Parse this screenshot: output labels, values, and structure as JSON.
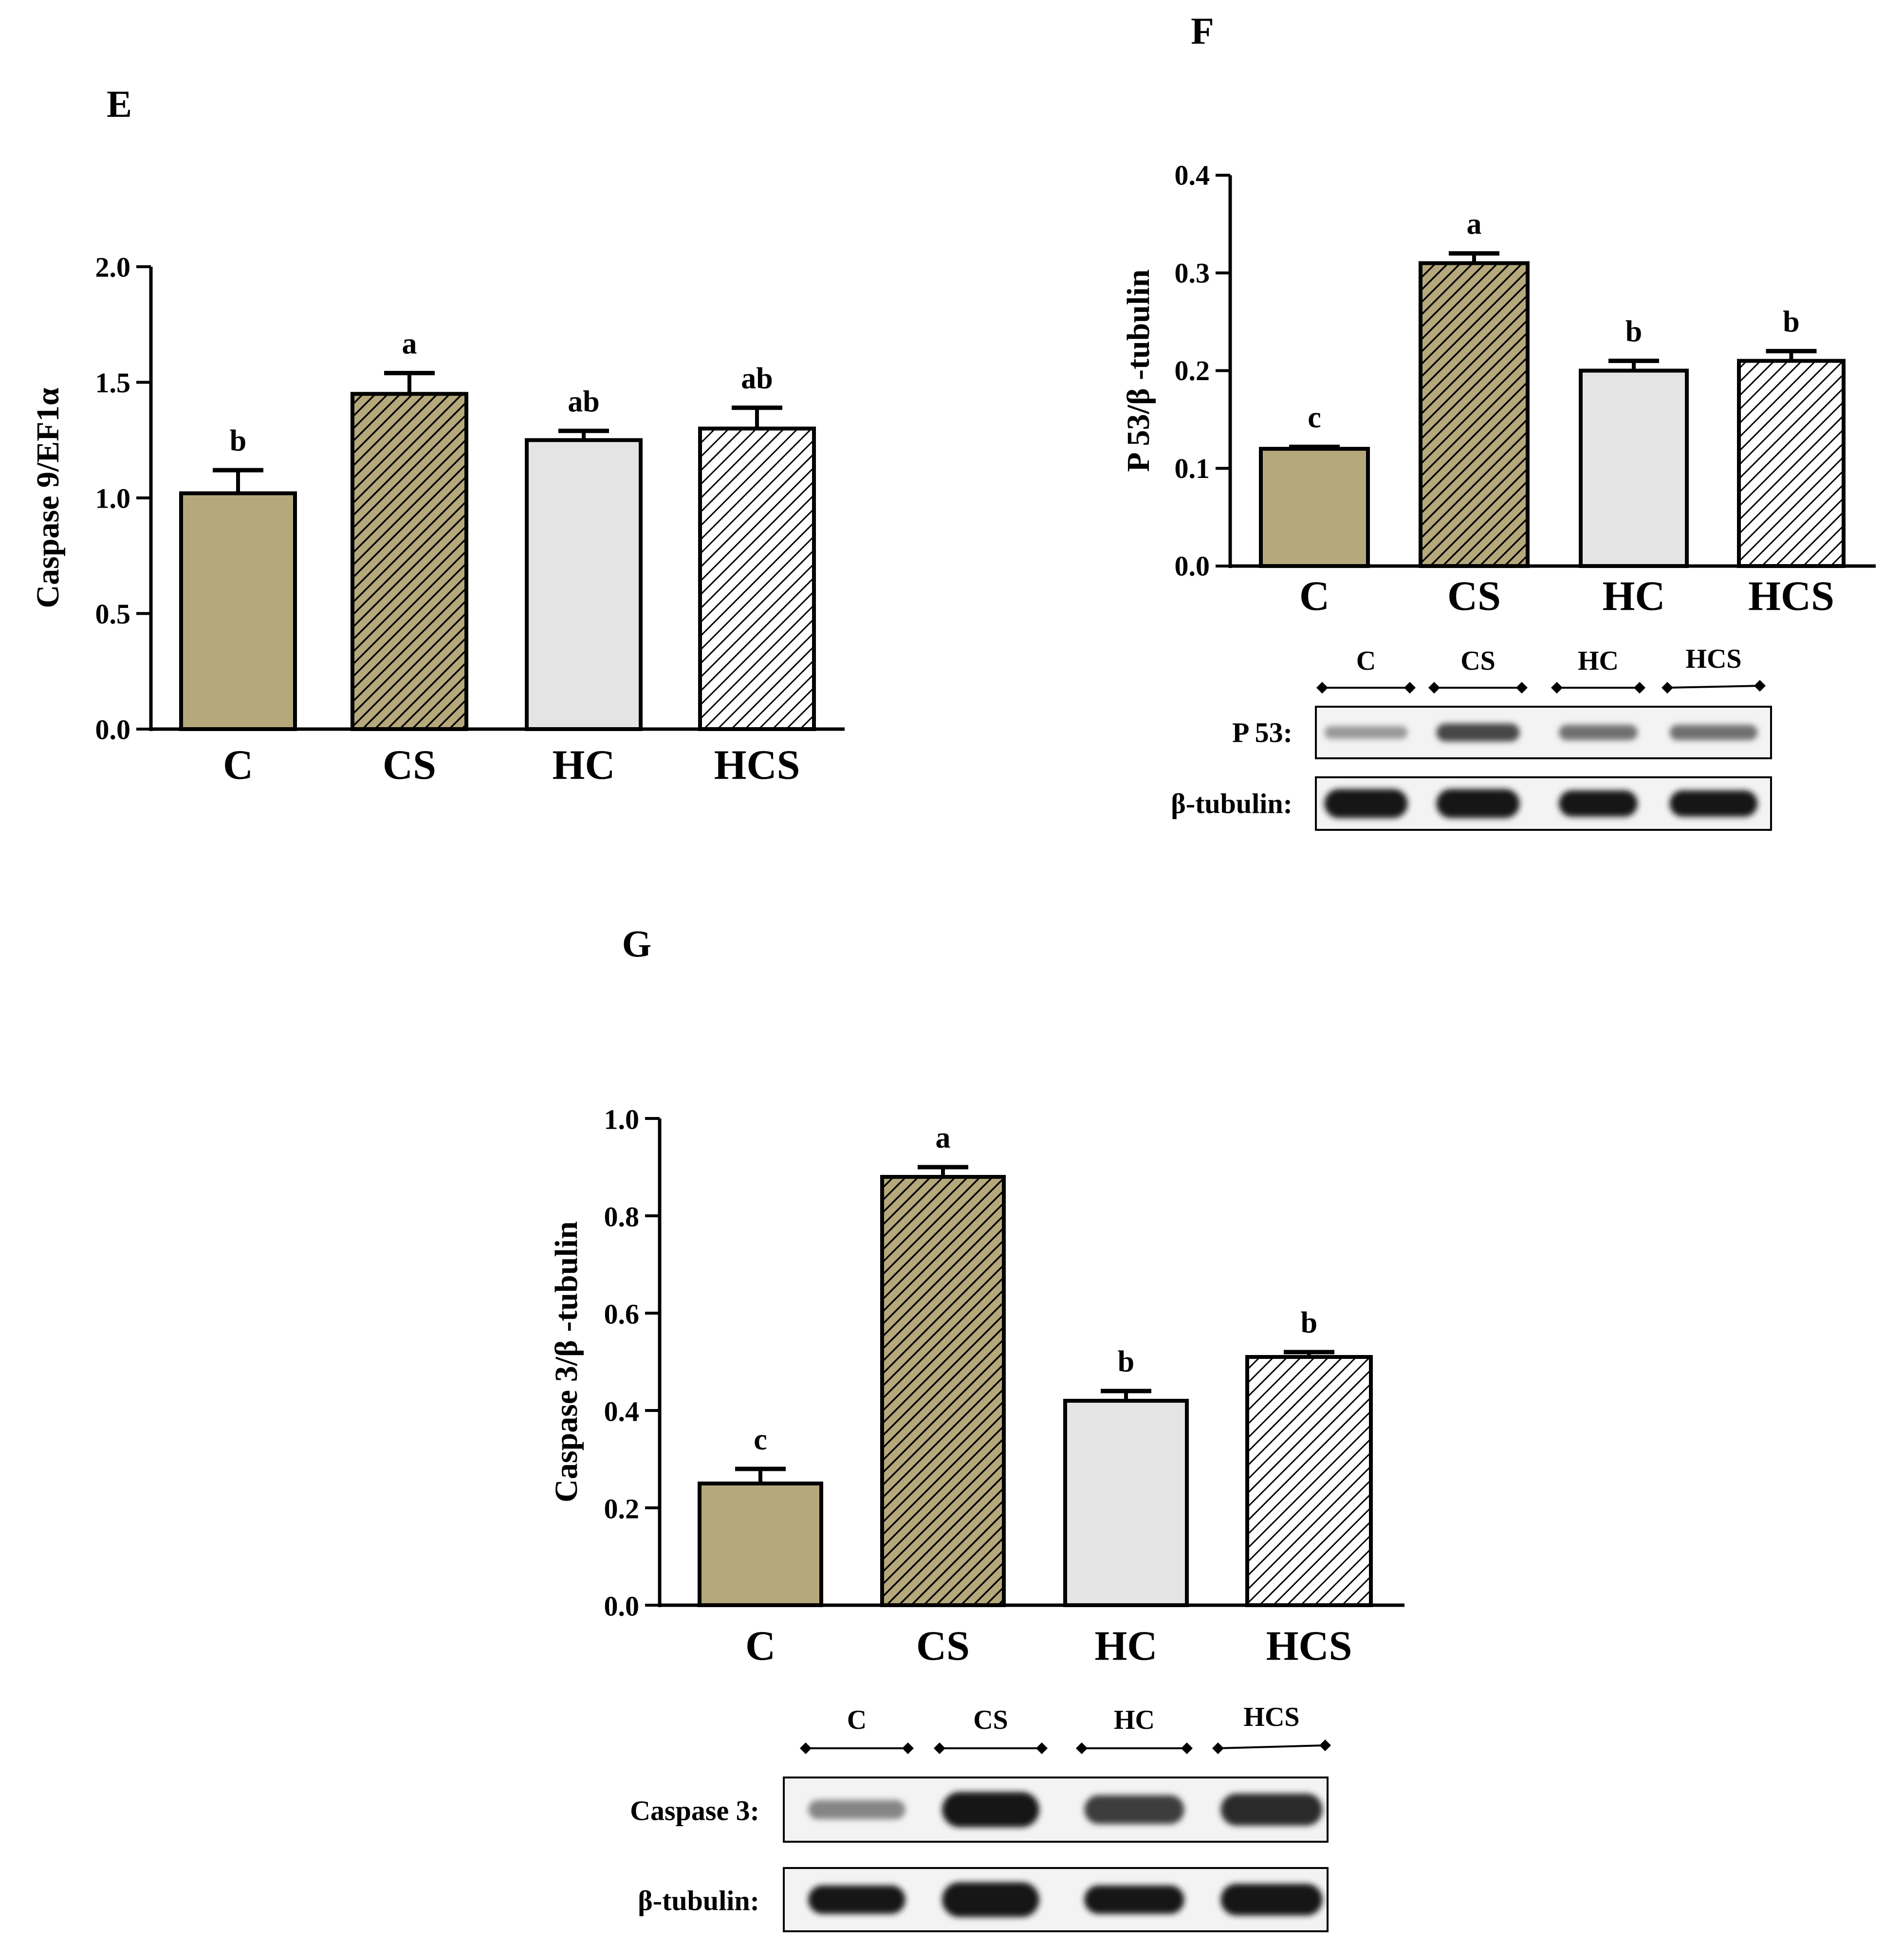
{
  "colors": {
    "C": "#b5a87b",
    "CS": "#b5a87b",
    "HC": "#e4e4e4",
    "HCS": "#ffffff",
    "stroke": "#000000"
  },
  "chart_data": [
    {
      "id": "E",
      "panel_label": "E",
      "type": "bar",
      "title": "",
      "xlabel": "",
      "ylabel": "Caspase 9/EF1α",
      "categories": [
        "C",
        "CS",
        "HC",
        "HCS"
      ],
      "values": [
        1.02,
        1.45,
        1.25,
        1.3
      ],
      "errors": [
        0.1,
        0.09,
        0.04,
        0.09
      ],
      "significance": [
        "b",
        "a",
        "ab",
        "ab"
      ],
      "patterns": [
        "solid",
        "hatch-dense",
        "solid",
        "hatch-sparse"
      ],
      "ylim": [
        0,
        2.0
      ],
      "yticks": [
        0,
        0.5,
        1.0,
        1.5,
        2.0
      ],
      "ytick_labels": [
        "0.0",
        "0.5",
        "1.0",
        "1.5",
        "2.0"
      ],
      "grid": false
    },
    {
      "id": "F",
      "panel_label": "F",
      "type": "bar",
      "title": "",
      "xlabel": "",
      "ylabel": "P 53/β -tubulin",
      "categories": [
        "C",
        "CS",
        "HC",
        "HCS"
      ],
      "values": [
        0.12,
        0.31,
        0.2,
        0.21
      ],
      "errors": [
        0.002,
        0.01,
        0.01,
        0.01
      ],
      "significance": [
        "c",
        "a",
        "b",
        "b"
      ],
      "patterns": [
        "solid",
        "hatch-dense",
        "solid",
        "hatch-sparse"
      ],
      "ylim": [
        0,
        0.4
      ],
      "yticks": [
        0,
        0.1,
        0.2,
        0.3,
        0.4
      ],
      "ytick_labels": [
        "0.0",
        "0.1",
        "0.2",
        "0.3",
        "0.4"
      ],
      "grid": false,
      "blot": {
        "lanes": [
          "C",
          "CS",
          "HC",
          "HCS"
        ],
        "rows": [
          {
            "label": "P 53:",
            "intensity": [
              0.35,
              0.75,
              0.55,
              0.55
            ],
            "thickness": [
              0.25,
              0.35,
              0.3,
              0.3
            ]
          },
          {
            "label": "β-tubulin:",
            "intensity": [
              1.0,
              1.0,
              1.0,
              1.0
            ],
            "thickness": [
              0.55,
              0.55,
              0.5,
              0.5
            ]
          }
        ]
      }
    },
    {
      "id": "G",
      "panel_label": "G",
      "type": "bar",
      "title": "",
      "xlabel": "",
      "ylabel": "Caspase 3/β -tubulin",
      "categories": [
        "C",
        "CS",
        "HC",
        "HCS"
      ],
      "values": [
        0.25,
        0.88,
        0.42,
        0.51
      ],
      "errors": [
        0.03,
        0.02,
        0.02,
        0.01
      ],
      "significance": [
        "c",
        "a",
        "b",
        "b"
      ],
      "patterns": [
        "solid",
        "hatch-dense",
        "solid",
        "hatch-sparse"
      ],
      "ylim": [
        0,
        1.0
      ],
      "yticks": [
        0,
        0.2,
        0.4,
        0.6,
        0.8,
        1.0
      ],
      "ytick_labels": [
        "0.0",
        "0.2",
        "0.4",
        "0.6",
        "0.8",
        "1.0"
      ],
      "grid": false,
      "blot": {
        "lanes": [
          "C",
          "CS",
          "HC",
          "HCS"
        ],
        "rows": [
          {
            "label": "Caspase 3:",
            "intensity": [
              0.45,
              1.0,
              0.8,
              0.9
            ],
            "thickness": [
              0.3,
              0.55,
              0.45,
              0.5
            ]
          },
          {
            "label": "β-tubulin:",
            "intensity": [
              1.0,
              1.0,
              1.0,
              1.0
            ],
            "thickness": [
              0.45,
              0.55,
              0.45,
              0.5
            ]
          }
        ]
      }
    }
  ]
}
